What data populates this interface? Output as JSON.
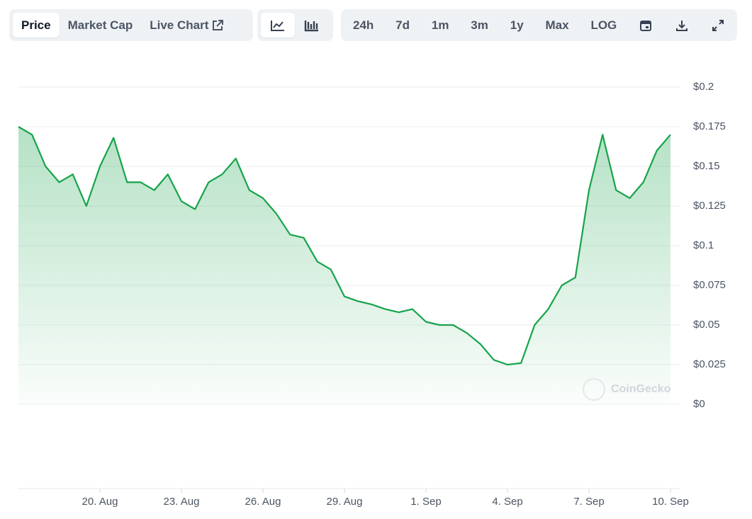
{
  "toolbar": {
    "tabs": [
      "Price",
      "Market Cap",
      "Live Chart"
    ],
    "ranges": [
      "24h",
      "7d",
      "1m",
      "3m",
      "1y",
      "Max",
      "LOG"
    ]
  },
  "watermark": "CoinGecko",
  "chart_data": {
    "type": "line",
    "categories": [
      null,
      null,
      null,
      null,
      null,
      null,
      "20. Aug",
      null,
      null,
      null,
      null,
      null,
      "23. Aug",
      null,
      null,
      null,
      null,
      null,
      "26. Aug",
      null,
      null,
      null,
      null,
      null,
      "29. Aug",
      null,
      null,
      null,
      null,
      null,
      "1. Sep",
      null,
      null,
      null,
      null,
      null,
      "4. Sep",
      null,
      null,
      null,
      null,
      null,
      "7. Sep",
      null,
      null,
      null,
      null,
      null,
      "10. Sep"
    ],
    "values": [
      0.175,
      0.17,
      0.15,
      0.14,
      0.145,
      0.125,
      0.15,
      0.168,
      0.14,
      0.14,
      0.135,
      0.145,
      0.128,
      0.123,
      0.14,
      0.145,
      0.155,
      0.135,
      0.13,
      0.12,
      0.107,
      0.105,
      0.09,
      0.085,
      0.068,
      0.065,
      0.063,
      0.06,
      0.058,
      0.06,
      0.052,
      0.05,
      0.05,
      0.045,
      0.038,
      0.028,
      0.025,
      0.026,
      0.05,
      0.06,
      0.075,
      0.08,
      0.135,
      0.17,
      0.135,
      0.13,
      0.14,
      0.16,
      0.17
    ],
    "color": "#16a34a",
    "ylim": [
      0,
      0.2
    ],
    "yticks": [
      {
        "value": 0,
        "label": "$0"
      },
      {
        "value": 0.025,
        "label": "$0.025"
      },
      {
        "value": 0.05,
        "label": "$0.05"
      },
      {
        "value": 0.075,
        "label": "$0.075"
      },
      {
        "value": 0.1,
        "label": "$0.1"
      },
      {
        "value": 0.125,
        "label": "$0.125"
      },
      {
        "value": 0.15,
        "label": "$0.15"
      },
      {
        "value": 0.175,
        "label": "$0.175"
      },
      {
        "value": 0.2,
        "label": "$0.2"
      }
    ],
    "grid": true
  }
}
